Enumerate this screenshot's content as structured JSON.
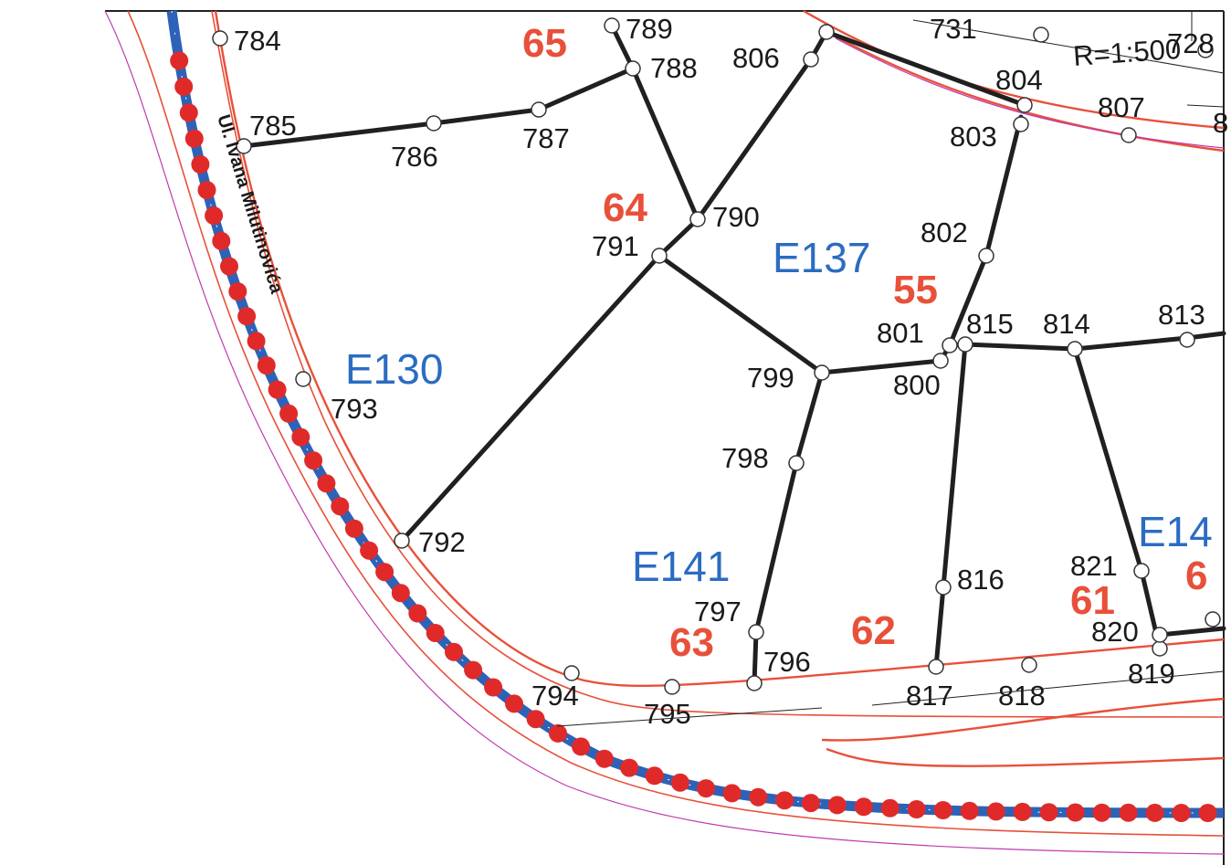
{
  "map": {
    "street_label": "Ul. Ivana Milutinovića",
    "scale_label": "R=1:500",
    "colors": {
      "road_line": "#e8503a",
      "outer_road_line": "#c03ab0",
      "pipe": "#2c63b8",
      "pipe_dots": "#e02a2a",
      "parcel_id_text": "#2b6cc2",
      "parcel_number_text": "#e8503a",
      "boundary": "#202020"
    },
    "parcels": [
      {
        "id": "E130"
      },
      {
        "id": "E137"
      },
      {
        "id": "E141"
      },
      {
        "id": "E14"
      }
    ],
    "parcel_numbers": [
      "65",
      "64",
      "55",
      "63",
      "62",
      "61",
      "6"
    ],
    "points": [
      {
        "id": "784"
      },
      {
        "id": "785"
      },
      {
        "id": "786"
      },
      {
        "id": "787"
      },
      {
        "id": "788"
      },
      {
        "id": "789"
      },
      {
        "id": "790"
      },
      {
        "id": "791"
      },
      {
        "id": "792"
      },
      {
        "id": "793"
      },
      {
        "id": "794"
      },
      {
        "id": "795"
      },
      {
        "id": "796"
      },
      {
        "id": "797"
      },
      {
        "id": "798"
      },
      {
        "id": "799"
      },
      {
        "id": "800"
      },
      {
        "id": "801"
      },
      {
        "id": "802"
      },
      {
        "id": "803"
      },
      {
        "id": "804"
      },
      {
        "id": "806"
      },
      {
        "id": "807"
      },
      {
        "id": "813"
      },
      {
        "id": "814"
      },
      {
        "id": "815"
      },
      {
        "id": "816"
      },
      {
        "id": "817"
      },
      {
        "id": "818"
      },
      {
        "id": "819"
      },
      {
        "id": "820"
      },
      {
        "id": "821"
      },
      {
        "id": "731"
      },
      {
        "id": "728"
      },
      {
        "id": "8"
      }
    ]
  }
}
